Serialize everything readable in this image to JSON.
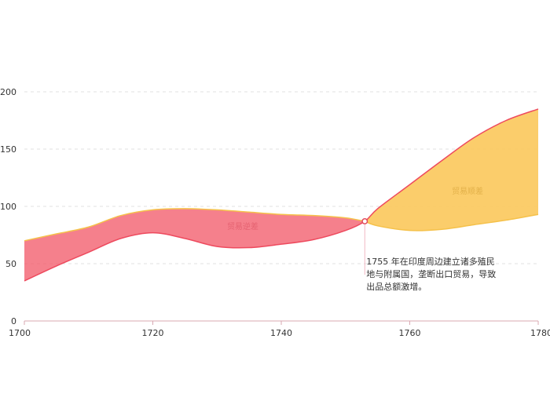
{
  "chart_data": {
    "type": "area",
    "x_axis": {
      "min": 1700,
      "max": 1780,
      "ticks": [
        1700,
        1720,
        1740,
        1760,
        1780
      ]
    },
    "y_axis": {
      "min": 0,
      "max": 200,
      "ticks": [
        0,
        50,
        100,
        150,
        200
      ]
    },
    "grid": {
      "horizontal": true,
      "style": "dashed"
    },
    "series": [
      {
        "id": "import",
        "x": [
          1700,
          1705,
          1710,
          1715,
          1720,
          1725,
          1730,
          1735,
          1740,
          1745,
          1750,
          1753
        ],
        "values": [
          70,
          76,
          82,
          92,
          97,
          98,
          97,
          95,
          93,
          92,
          90,
          87
        ],
        "color": "#f5c14a"
      },
      {
        "id": "export",
        "x": [
          1700,
          1705,
          1710,
          1715,
          1720,
          1725,
          1730,
          1735,
          1740,
          1745,
          1750,
          1753,
          1755,
          1760,
          1765,
          1770,
          1775,
          1780
        ],
        "values": [
          35,
          48,
          60,
          72,
          77,
          72,
          65,
          64,
          67,
          71,
          79,
          87,
          98,
          119,
          140,
          160,
          175,
          185
        ],
        "color": "#ee4a5e"
      },
      {
        "id": "import_after",
        "x": [
          1753,
          1755,
          1760,
          1765,
          1770,
          1775,
          1780
        ],
        "values": [
          87,
          83,
          79,
          80,
          84,
          88,
          93
        ],
        "color": "#f5c14a"
      }
    ],
    "regions": [
      {
        "label": "贸易逆差",
        "x_center": 1734,
        "y_center": 80,
        "fill": "#f25c6c",
        "text_color": "#d94b5c"
      },
      {
        "label": "贸易顺差",
        "x_center": 1769,
        "y_center": 111,
        "fill": "#fbc85b",
        "text_color": "#cf9a2e"
      }
    ],
    "annotation": {
      "x": 1753,
      "y": 87,
      "lines": [
        "1755 年在印度周边建立诸多殖民",
        "地与附属国，垄断出口贸易，导致",
        "出品总额激增。"
      ]
    },
    "axis_color": "#d8a8b2",
    "grid_color": "#e0e0e0"
  }
}
